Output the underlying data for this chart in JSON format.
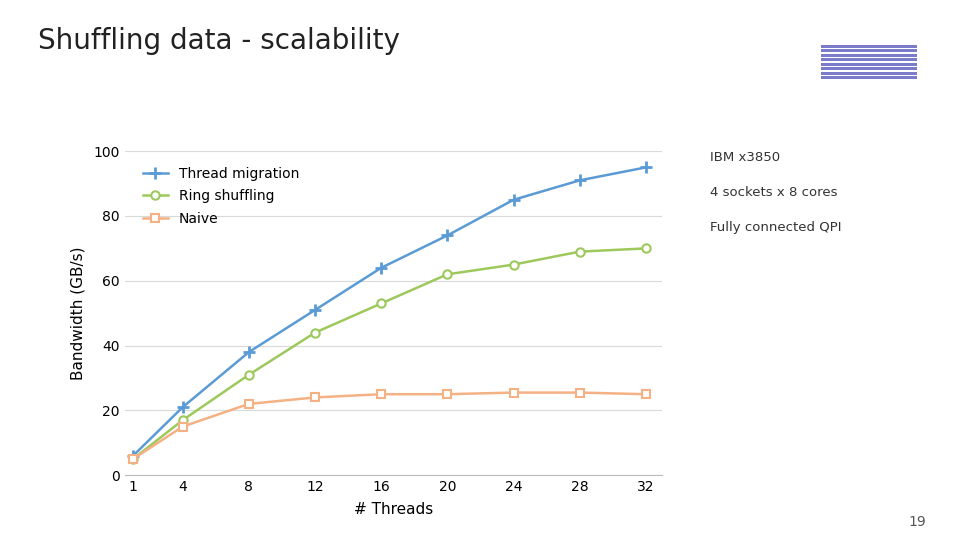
{
  "title": "Shuffling data - scalability",
  "xlabel": "# Threads",
  "ylabel": "Bandwidth (GB/s)",
  "x_values": [
    1,
    4,
    8,
    12,
    16,
    20,
    24,
    28,
    32
  ],
  "thread_migration": [
    6,
    21,
    38,
    51,
    64,
    74,
    85,
    91,
    95
  ],
  "ring_shuffling": [
    5,
    17,
    31,
    44,
    53,
    62,
    65,
    69,
    70
  ],
  "naive": [
    5,
    15,
    22,
    24,
    25,
    25,
    25.5,
    25.5,
    25
  ],
  "thread_color": "#5b9bd5",
  "ring_color": "#9dc95c",
  "naive_color": "#f4b183",
  "ylim": [
    0,
    100
  ],
  "yticks": [
    0,
    20,
    40,
    60,
    80,
    100
  ],
  "xticks": [
    1,
    4,
    8,
    12,
    16,
    20,
    24,
    28,
    32
  ],
  "note_line1": "IBM x3850",
  "note_line2": "4 sockets x 8 cores",
  "note_line3": "Fully connected QPI",
  "background_color": "#ffffff",
  "grid_color": "#d9d9d9",
  "page_number": "19",
  "ibm_blue": "#7b7bcc"
}
